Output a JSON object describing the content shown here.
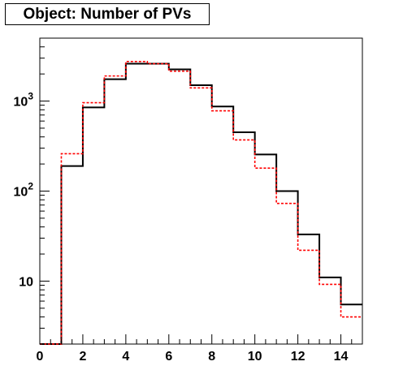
{
  "chart_data": {
    "type": "histogram",
    "title": "Object: Number of PVs",
    "x_bin_edges": [
      0,
      1,
      2,
      3,
      4,
      5,
      6,
      7,
      8,
      9,
      10,
      11,
      12,
      13,
      14,
      15
    ],
    "xlim": [
      0,
      15
    ],
    "ylim": [
      2,
      5000
    ],
    "y_scale": "log",
    "x_tick_labels": [
      "0",
      "2",
      "4",
      "6",
      "8",
      "10",
      "12",
      "14"
    ],
    "x_tick_values": [
      0,
      2,
      4,
      6,
      8,
      10,
      12,
      14
    ],
    "y_tick_labels": [
      {
        "base": "10",
        "exp": "",
        "value": 10
      },
      {
        "base": "10",
        "exp": "2",
        "value": 100
      },
      {
        "base": "10",
        "exp": "3",
        "value": 1000
      }
    ],
    "series": [
      {
        "style": "solid",
        "color": "#000000",
        "values": [
          2,
          190,
          850,
          1750,
          2600,
          2600,
          2250,
          1500,
          870,
          450,
          255,
          100,
          33,
          11,
          5.5
        ]
      },
      {
        "style": "dashed",
        "color": "#ff0000",
        "values": [
          2,
          260,
          960,
          1900,
          2750,
          2600,
          2150,
          1400,
          780,
          370,
          180,
          73,
          22,
          9.2,
          4
        ]
      }
    ]
  }
}
